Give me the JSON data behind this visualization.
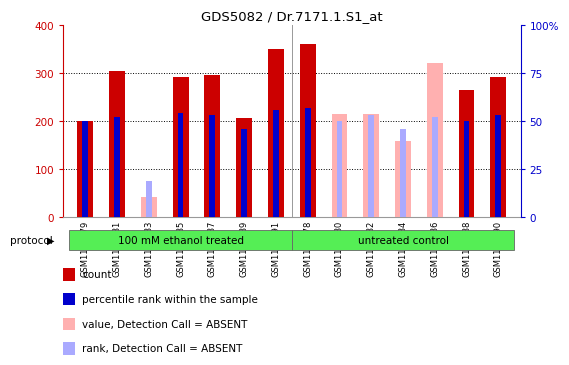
{
  "title": "GDS5082 / Dr.7171.1.S1_at",
  "samples": [
    "GSM1176779",
    "GSM1176781",
    "GSM1176783",
    "GSM1176785",
    "GSM1176787",
    "GSM1176789",
    "GSM1176791",
    "GSM1176778",
    "GSM1176780",
    "GSM1176782",
    "GSM1176784",
    "GSM1176786",
    "GSM1176788",
    "GSM1176790"
  ],
  "n_group1": 7,
  "n_group2": 7,
  "count_values": [
    200,
    305,
    null,
    292,
    296,
    207,
    350,
    360,
    null,
    null,
    null,
    null,
    265,
    292
  ],
  "count_color": "#CC0000",
  "percentile_values": [
    50,
    52,
    null,
    54,
    53,
    46,
    56,
    57,
    null,
    null,
    null,
    null,
    50,
    53
  ],
  "percentile_color": "#0000CC",
  "absent_value_values": [
    null,
    null,
    42,
    null,
    null,
    null,
    null,
    null,
    215,
    215,
    158,
    320,
    null,
    null
  ],
  "absent_value_color": "#FFB0B0",
  "absent_rank_values": [
    null,
    null,
    19,
    null,
    null,
    null,
    null,
    null,
    50,
    53,
    46,
    52,
    null,
    null
  ],
  "absent_rank_color": "#AAAAFF",
  "ylim_left": [
    0,
    400
  ],
  "ylim_right": [
    0,
    100
  ],
  "left_ticks": [
    0,
    100,
    200,
    300,
    400
  ],
  "right_ticks": [
    0,
    25,
    50,
    75,
    100
  ],
  "left_color": "#CC0000",
  "right_color": "#0000CC",
  "count_bar_width": 0.5,
  "pct_bar_width": 0.18,
  "protocol_label": "protocol",
  "group1_label": "100 mM ethanol treated",
  "group2_label": "untreated control",
  "group_color": "#55EE55",
  "legend_items": [
    {
      "label": "count",
      "color": "#CC0000"
    },
    {
      "label": "percentile rank within the sample",
      "color": "#0000CC"
    },
    {
      "label": "value, Detection Call = ABSENT",
      "color": "#FFB0B0"
    },
    {
      "label": "rank, Detection Call = ABSENT",
      "color": "#AAAAFF"
    }
  ]
}
